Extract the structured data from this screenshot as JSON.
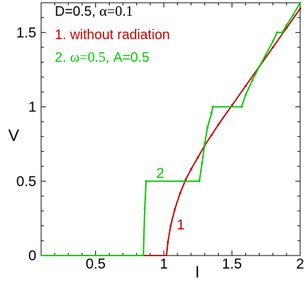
{
  "chart_data": {
    "type": "line",
    "title": "",
    "xlabel": "I",
    "ylabel": "V",
    "xlim": [
      0.1,
      2.0
    ],
    "ylim": [
      0,
      1.7
    ],
    "grid": false,
    "x_ticks": [
      0.5,
      1,
      1.5,
      2
    ],
    "x_tick_labels": [
      "0.5",
      "1",
      "1.5",
      "2"
    ],
    "y_ticks": [
      0,
      0.5,
      1,
      1.5
    ],
    "y_tick_labels": [
      "0",
      "0.5",
      "1",
      "1.5"
    ],
    "legend": {
      "placement": "top-left",
      "params": {
        "prefix": "D=0.5, ",
        "greek": "α=0.1"
      },
      "entry1": {
        "text": "1. without radiation",
        "color": "#cc0000"
      },
      "entry2": {
        "prefix": "2. ",
        "greek": "ω=0.5",
        "suffix": ", A=0.5",
        "color": "#00cc00"
      }
    },
    "series": [
      {
        "label": "1",
        "color": "#cc0000",
        "x": [
          0.1,
          1.02,
          1.03,
          1.05,
          1.08,
          1.12,
          1.16,
          1.2,
          1.25,
          1.3,
          1.35,
          1.4,
          1.5,
          1.6,
          1.7,
          1.8,
          1.9,
          2.0
        ],
        "y": [
          0,
          0,
          0.09,
          0.2,
          0.31,
          0.42,
          0.51,
          0.58,
          0.66,
          0.74,
          0.81,
          0.88,
          1.01,
          1.14,
          1.27,
          1.4,
          1.53,
          1.66
        ]
      },
      {
        "label": "2",
        "color": "#00cc00",
        "x": [
          0.1,
          0.85,
          0.86,
          0.87,
          1.26,
          1.28,
          1.3,
          1.32,
          1.35,
          1.36,
          1.57,
          1.6,
          1.65,
          1.7,
          1.8,
          1.83,
          1.87,
          1.9,
          1.95,
          2.0
        ],
        "y": [
          0,
          0,
          0.32,
          0.5,
          0.5,
          0.62,
          0.75,
          0.86,
          0.96,
          1.0,
          1.0,
          1.08,
          1.18,
          1.27,
          1.44,
          1.5,
          1.5,
          1.55,
          1.62,
          1.7
        ]
      }
    ]
  }
}
